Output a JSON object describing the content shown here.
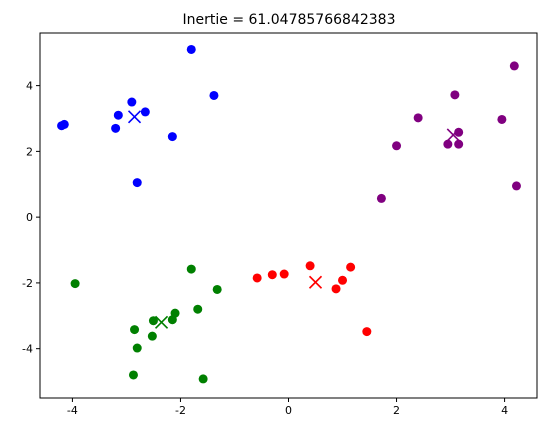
{
  "chart_data": {
    "type": "scatter",
    "title": "Inertie = 61.04785766842383",
    "xlabel": "",
    "ylabel": "",
    "xlim": [
      -4.6,
      4.6
    ],
    "ylim": [
      -5.5,
      5.6
    ],
    "xticks": [
      -4,
      -2,
      0,
      2,
      4
    ],
    "yticks": [
      -4,
      -2,
      0,
      2,
      4
    ],
    "grid": false,
    "series": [
      {
        "color": "#0000ff",
        "marker": "circle",
        "points": [
          [
            -1.8,
            5.1
          ],
          [
            -4.2,
            2.78
          ],
          [
            -4.15,
            2.82
          ],
          [
            -3.15,
            3.1
          ],
          [
            -3.2,
            2.7
          ],
          [
            -2.9,
            3.5
          ],
          [
            -2.65,
            3.2
          ],
          [
            -1.38,
            3.7
          ],
          [
            -2.15,
            2.45
          ],
          [
            -2.8,
            1.05
          ]
        ]
      },
      {
        "color": "#800080",
        "marker": "circle",
        "points": [
          [
            4.18,
            4.6
          ],
          [
            3.08,
            3.72
          ],
          [
            2.4,
            3.02
          ],
          [
            3.95,
            2.97
          ],
          [
            3.15,
            2.58
          ],
          [
            2.95,
            2.22
          ],
          [
            3.15,
            2.22
          ],
          [
            2.0,
            2.17
          ],
          [
            4.22,
            0.95
          ],
          [
            1.72,
            0.57
          ]
        ]
      },
      {
        "color": "#ff0000",
        "marker": "circle",
        "points": [
          [
            -0.58,
            -1.85
          ],
          [
            -0.3,
            -1.75
          ],
          [
            -0.08,
            -1.73
          ],
          [
            0.4,
            -1.48
          ],
          [
            1.15,
            -1.52
          ],
          [
            1.0,
            -1.92
          ],
          [
            0.88,
            -2.18
          ],
          [
            1.45,
            -3.48
          ]
        ]
      },
      {
        "color": "#008000",
        "marker": "circle",
        "points": [
          [
            -3.95,
            -2.02
          ],
          [
            -1.8,
            -1.58
          ],
          [
            -1.32,
            -2.2
          ],
          [
            -1.68,
            -2.8
          ],
          [
            -2.1,
            -2.92
          ],
          [
            -2.15,
            -3.12
          ],
          [
            -2.5,
            -3.15
          ],
          [
            -2.85,
            -3.42
          ],
          [
            -2.52,
            -3.62
          ],
          [
            -2.8,
            -3.98
          ],
          [
            -2.87,
            -4.8
          ],
          [
            -1.58,
            -4.92
          ]
        ]
      }
    ],
    "centroids": [
      {
        "color": "#0000ff",
        "marker": "x",
        "x": -2.85,
        "y": 3.05
      },
      {
        "color": "#800080",
        "marker": "x",
        "x": 3.05,
        "y": 2.5
      },
      {
        "color": "#ff0000",
        "marker": "x",
        "x": 0.5,
        "y": -1.98
      },
      {
        "color": "#008000",
        "marker": "x",
        "x": -2.35,
        "y": -3.2
      }
    ]
  }
}
